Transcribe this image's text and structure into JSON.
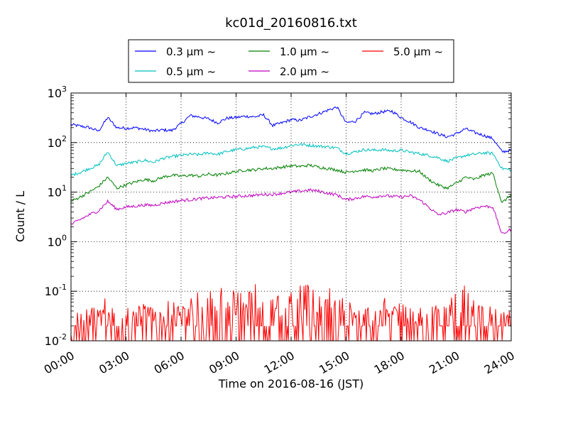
{
  "chart_data": {
    "type": "line",
    "title": "kc01d_20160816.txt",
    "xlabel": "Time on 2016-08-16 (JST)",
    "ylabel": "Count / L",
    "yscale": "log",
    "ylim": [
      0.01,
      1000
    ],
    "xlim": [
      "00:00",
      "24:00"
    ],
    "x_ticks": [
      "00:00",
      "03:00",
      "06:00",
      "09:00",
      "12:00",
      "15:00",
      "18:00",
      "21:00",
      "24:00"
    ],
    "y_ticks": [
      {
        "value": 0.01,
        "base": "10",
        "exp": "-2"
      },
      {
        "value": 0.1,
        "base": "10",
        "exp": "-1"
      },
      {
        "value": 1,
        "base": "10",
        "exp": "0"
      },
      {
        "value": 10,
        "base": "10",
        "exp": "1"
      },
      {
        "value": 100,
        "base": "10",
        "exp": "2"
      },
      {
        "value": 1000,
        "base": "10",
        "exp": "3"
      }
    ],
    "grid": true,
    "legend_position": "top-center",
    "x_hours": [
      0,
      0.5,
      1,
      1.5,
      2,
      2.5,
      3,
      3.5,
      4,
      4.5,
      5,
      5.5,
      6,
      6.5,
      7,
      7.5,
      8,
      8.5,
      9,
      9.5,
      10,
      10.5,
      11,
      11.5,
      12,
      12.5,
      13,
      13.5,
      14,
      14.5,
      15,
      15.5,
      16,
      16.5,
      17,
      17.5,
      18,
      18.5,
      19,
      19.5,
      20,
      20.5,
      21,
      21.5,
      22,
      22.5,
      23,
      23.5,
      24
    ],
    "series": [
      {
        "name": "0.3 μm ~",
        "color": "#0000ff",
        "values": [
          230,
          215,
          200,
          170,
          320,
          200,
          195,
          200,
          185,
          170,
          180,
          175,
          240,
          350,
          330,
          300,
          250,
          310,
          320,
          340,
          330,
          360,
          220,
          250,
          290,
          280,
          330,
          380,
          450,
          520,
          250,
          270,
          400,
          380,
          420,
          430,
          320,
          260,
          200,
          180,
          150,
          130,
          150,
          190,
          160,
          140,
          120,
          65,
          70
        ]
      },
      {
        "name": "0.5 μm ~",
        "color": "#00bfbf",
        "values": [
          22,
          25,
          30,
          35,
          65,
          34,
          38,
          40,
          44,
          40,
          48,
          52,
          55,
          58,
          57,
          62,
          58,
          66,
          72,
          75,
          80,
          82,
          75,
          78,
          88,
          92,
          88,
          85,
          82,
          78,
          60,
          65,
          72,
          70,
          72,
          68,
          70,
          64,
          60,
          55,
          50,
          42,
          48,
          55,
          58,
          62,
          60,
          30,
          28
        ]
      },
      {
        "name": "1.0 μm ~",
        "color": "#008000",
        "values": [
          6.5,
          8,
          10,
          13,
          20,
          12,
          14,
          16,
          18,
          17,
          20,
          22,
          21,
          22,
          21,
          23,
          22,
          24,
          26,
          28,
          28,
          30,
          30,
          32,
          34,
          33,
          35,
          32,
          30,
          28,
          25,
          27,
          28,
          27,
          30,
          29,
          28,
          27,
          26,
          18,
          14,
          12,
          15,
          20,
          18,
          22,
          24,
          6,
          9
        ]
      },
      {
        "name": "2.0 μm ~",
        "color": "#bf00bf",
        "values": [
          2.2,
          2.8,
          3.5,
          4.2,
          6.5,
          4.5,
          5,
          5.2,
          5.5,
          5.4,
          6.0,
          6.4,
          6.8,
          7.0,
          7.4,
          7.6,
          7.8,
          8.0,
          8.2,
          8.4,
          8.6,
          9.0,
          9.0,
          9.5,
          10,
          10.5,
          11,
          10.5,
          9.5,
          8.8,
          7,
          7.5,
          8.2,
          8.0,
          8.5,
          8.2,
          8.0,
          8.4,
          7.0,
          5.0,
          3.5,
          3.8,
          4.4,
          4.0,
          4.8,
          5.2,
          5.0,
          1.4,
          1.8
        ]
      },
      {
        "name": "5.0 μm ~",
        "color": "#ff0000",
        "values": [
          0.01,
          0.02,
          0.04,
          0.02,
          0.06,
          0.02,
          0.04,
          0.03,
          0.05,
          0.02,
          0.04,
          0.06,
          0.03,
          0.05,
          0.08,
          0.06,
          0.1,
          0.04,
          0.08,
          0.06,
          0.12,
          0.05,
          0.08,
          0.1,
          0.06,
          0.09,
          0.1,
          0.06,
          0.08,
          0.04,
          0.05,
          0.03,
          0.04,
          0.02,
          0.05,
          0.03,
          0.04,
          0.02,
          0.03,
          0.05,
          0.03,
          0.04,
          0.06,
          0.09,
          0.04,
          0.03,
          0.02,
          0.01,
          0.03
        ]
      }
    ]
  }
}
